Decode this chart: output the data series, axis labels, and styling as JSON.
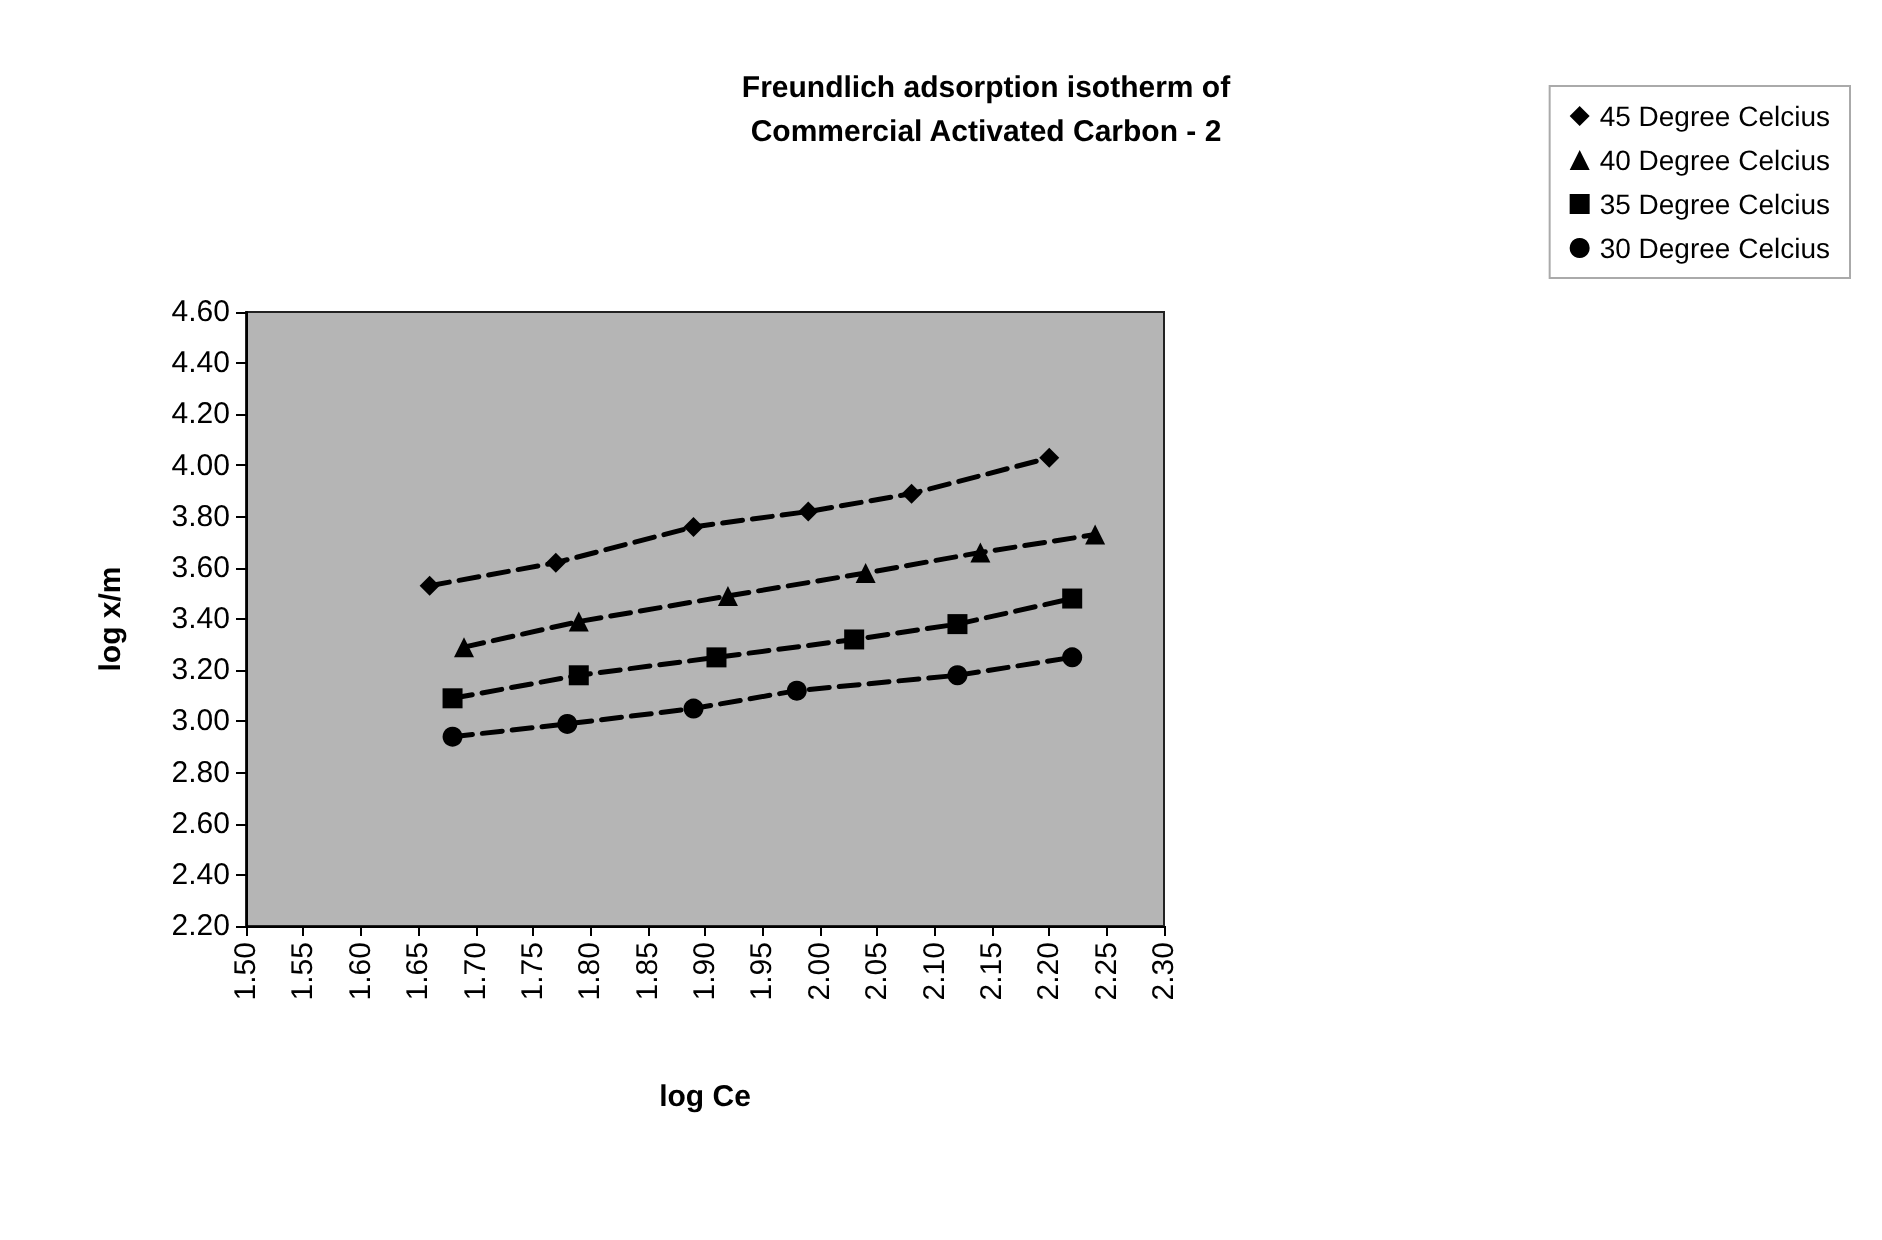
{
  "chart_data": {
    "type": "line",
    "title": "Freundlich adsorption isotherm of\nCommercial Activated Carbon - 2",
    "xlabel": "log Ce",
    "ylabel": "log x/m",
    "xlim": [
      1.5,
      2.3
    ],
    "xticks": [
      {
        "value": 1.5,
        "label": "1.50"
      },
      {
        "value": 1.55,
        "label": "1.55"
      },
      {
        "value": 1.6,
        "label": "1.60"
      },
      {
        "value": 1.65,
        "label": "1.65"
      },
      {
        "value": 1.7,
        "label": "1.70"
      },
      {
        "value": 1.75,
        "label": "1.75"
      },
      {
        "value": 1.8,
        "label": "1.80"
      },
      {
        "value": 1.85,
        "label": "1.85"
      },
      {
        "value": 1.9,
        "label": "1.90"
      },
      {
        "value": 1.95,
        "label": "1.95"
      },
      {
        "value": 2.0,
        "label": "2.00"
      },
      {
        "value": 2.05,
        "label": "2.05"
      },
      {
        "value": 2.1,
        "label": "2.10"
      },
      {
        "value": 2.15,
        "label": "2.15"
      },
      {
        "value": 2.2,
        "label": "2.20"
      },
      {
        "value": 2.25,
        "label": "2.25"
      },
      {
        "value": 2.3,
        "label": "2.30"
      }
    ],
    "ylim": [
      2.2,
      4.6
    ],
    "yticks": [
      {
        "value": 2.2,
        "label": "2.20"
      },
      {
        "value": 2.4,
        "label": "2.40"
      },
      {
        "value": 2.6,
        "label": "2.60"
      },
      {
        "value": 2.8,
        "label": "2.80"
      },
      {
        "value": 3.0,
        "label": "3.00"
      },
      {
        "value": 3.2,
        "label": "3.20"
      },
      {
        "value": 3.4,
        "label": "3.40"
      },
      {
        "value": 3.6,
        "label": "3.60"
      },
      {
        "value": 3.8,
        "label": "3.80"
      },
      {
        "value": 4.0,
        "label": "4.00"
      },
      {
        "value": 4.2,
        "label": "4.20"
      },
      {
        "value": 4.4,
        "label": "4.40"
      },
      {
        "value": 4.6,
        "label": "4.60"
      }
    ],
    "grid": false,
    "legend": "top right",
    "line_style": "dashed",
    "series": [
      {
        "name": "45 Degree Celcius",
        "color": "#000000",
        "marker": "diamond",
        "x": [
          1.66,
          1.77,
          1.89,
          1.99,
          2.08,
          2.2
        ],
        "values": [
          3.53,
          3.62,
          3.76,
          3.82,
          3.89,
          4.03
        ]
      },
      {
        "name": "40 Degree Celcius",
        "color": "#000000",
        "marker": "triangle",
        "x": [
          1.69,
          1.79,
          1.92,
          2.04,
          2.14,
          2.24
        ],
        "values": [
          3.29,
          3.39,
          3.49,
          3.58,
          3.66,
          3.73
        ]
      },
      {
        "name": "35 Degree Celcius",
        "color": "#000000",
        "marker": "square",
        "x": [
          1.68,
          1.79,
          1.91,
          2.03,
          2.12,
          2.22
        ],
        "values": [
          3.09,
          3.18,
          3.25,
          3.32,
          3.38,
          3.48
        ]
      },
      {
        "name": "30 Degree Celcius",
        "color": "#000000",
        "marker": "circle",
        "x": [
          1.68,
          1.78,
          1.89,
          1.98,
          2.12,
          2.22
        ],
        "values": [
          2.94,
          2.99,
          3.05,
          3.12,
          3.18,
          3.25
        ]
      }
    ]
  }
}
